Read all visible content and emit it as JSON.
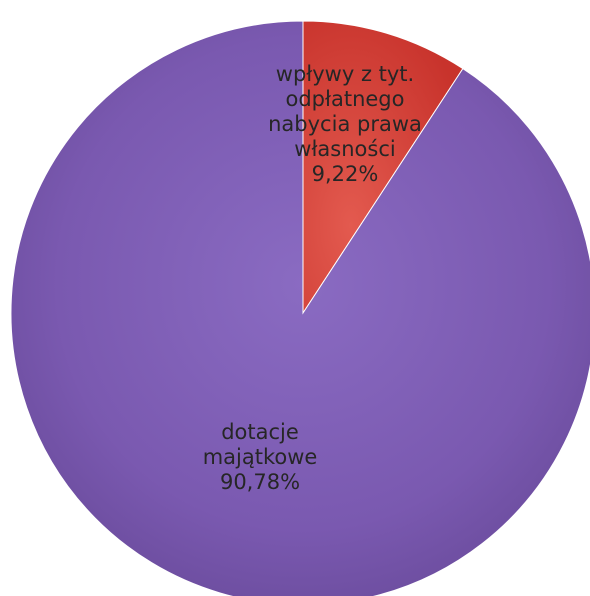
{
  "chart_data": {
    "type": "pie",
    "slices": [
      {
        "label_lines": [
          "wpływy z tyt.",
          "odpłatnego",
          "nabycia prawa",
          "własności"
        ],
        "value": 9.22,
        "value_label": "9,22%",
        "color": "#d9413a"
      },
      {
        "label_lines": [
          "dotacje",
          "majątkowe"
        ],
        "value": 90.78,
        "value_label": "90,78%",
        "color": "#7b5ab2"
      }
    ],
    "start_angle_deg": 0,
    "direction": "clockwise",
    "legend": "none",
    "data_labels": "inside, category name and percentage"
  }
}
